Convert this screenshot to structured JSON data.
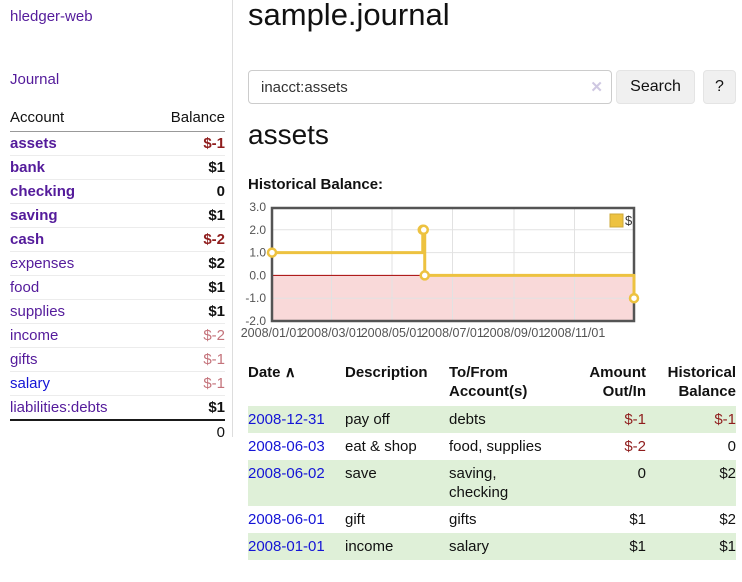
{
  "colors": {
    "link_purple": "#541b9b",
    "link_blue": "#1414d6",
    "negative_strong": "#8f1d1d",
    "negative_soft": "#c4737b",
    "row_stripe_green": "#dff0d8",
    "chart_gold": "#EDC240",
    "chart_negative_fill": "#f9d9d9",
    "chart_zero_line": "#a40000"
  },
  "sidebar": {
    "brand": "hledger-web",
    "nav": {
      "journal": "Journal"
    },
    "accounts_table": {
      "headers": {
        "account": "Account",
        "balance": "Balance"
      },
      "rows": [
        {
          "name": "assets",
          "indent": 1,
          "bold": true,
          "link_color": "purple",
          "balance": "$-1",
          "balance_style": "neg-strong"
        },
        {
          "name": "bank",
          "indent": 2,
          "bold": true,
          "link_color": "purple",
          "balance": "$1",
          "balance_style": "pos"
        },
        {
          "name": "checking",
          "indent": 3,
          "bold": true,
          "link_color": "purple",
          "balance": "0",
          "balance_style": "pos"
        },
        {
          "name": "saving",
          "indent": 3,
          "bold": true,
          "link_color": "purple",
          "balance": "$1",
          "balance_style": "pos"
        },
        {
          "name": "cash",
          "indent": 2,
          "bold": true,
          "link_color": "purple",
          "balance": "$-2",
          "balance_style": "neg-strong"
        },
        {
          "name": "expenses",
          "indent": 1,
          "bold": false,
          "link_color": "purple",
          "balance": "$2",
          "balance_style": "pos"
        },
        {
          "name": "food",
          "indent": 2,
          "bold": false,
          "link_color": "purple",
          "balance": "$1",
          "balance_style": "pos"
        },
        {
          "name": "supplies",
          "indent": 2,
          "bold": false,
          "link_color": "purple",
          "balance": "$1",
          "balance_style": "pos"
        },
        {
          "name": "income",
          "indent": 1,
          "bold": false,
          "link_color": "purple",
          "balance": "$-2",
          "balance_style": "neg-soft"
        },
        {
          "name": "gifts",
          "indent": 2,
          "bold": false,
          "link_color": "purple",
          "balance": "$-1",
          "balance_style": "neg-soft"
        },
        {
          "name": "salary",
          "indent": 2,
          "bold": false,
          "link_color": "blue",
          "balance": "$-1",
          "balance_style": "neg-soft"
        },
        {
          "name": "liabilities:debts",
          "indent": 1,
          "bold": false,
          "link_color": "purple",
          "balance": "$1",
          "balance_style": "pos"
        }
      ],
      "total": "0"
    }
  },
  "header": {
    "title": "sample.journal"
  },
  "search": {
    "value": "inacct:assets",
    "clear_icon": "✕",
    "button": "Search",
    "help_button": "?"
  },
  "account_page": {
    "heading": "assets",
    "chart_label": "Historical Balance:"
  },
  "chart_data": {
    "type": "line",
    "title": "Historical Balance",
    "xlim": [
      "2008-01-01",
      "2008-12-31"
    ],
    "ylim": [
      -2,
      3
    ],
    "grid": true,
    "legend_position": "top-right",
    "series": [
      {
        "name": "$",
        "color": "#EDC240",
        "steps": true,
        "points": [
          [
            "2008-01-01",
            1
          ],
          [
            "2008-06-01",
            2
          ],
          [
            "2008-06-02",
            2
          ],
          [
            "2008-06-03",
            0
          ],
          [
            "2008-12-31",
            -1
          ]
        ]
      }
    ],
    "yticks": [
      {
        "v": 3,
        "label": "3.0"
      },
      {
        "v": 2,
        "label": "2.0"
      },
      {
        "v": 1,
        "label": "1.0"
      },
      {
        "v": 0,
        "label": "0.0"
      },
      {
        "v": -1,
        "label": "-1.0"
      },
      {
        "v": -2,
        "label": "-2.0"
      }
    ],
    "xticks": [
      {
        "date": "2008-01-01",
        "label": "2008/01/01"
      },
      {
        "date": "2008-03-01",
        "label": "2008/03/01"
      },
      {
        "date": "2008-05-01",
        "label": "2008/05/01"
      },
      {
        "date": "2008-07-01",
        "label": "2008/07/01"
      },
      {
        "date": "2008-09-01",
        "label": "2008/09/01"
      },
      {
        "date": "2008-11-01",
        "label": "2008/11/01"
      }
    ],
    "negative_fill": "#f9d9d9",
    "zero_line_color": "#a40000"
  },
  "register": {
    "headers": {
      "date": "Date",
      "sort_icon": "∧",
      "description": "Description",
      "accounts": "To/From Account(s)",
      "amount": "Amount Out/In",
      "balance": "Historical Balance"
    },
    "rows": [
      {
        "date": "2008-12-31",
        "description": "pay off",
        "accounts": "debts",
        "amount": "$-1",
        "amount_neg": true,
        "balance": "$-1",
        "balance_neg": true
      },
      {
        "date": "2008-06-03",
        "description": "eat & shop",
        "accounts": "food, supplies",
        "amount": "$-2",
        "amount_neg": true,
        "balance": "0",
        "balance_neg": false
      },
      {
        "date": "2008-06-02",
        "description": "save",
        "accounts": "saving, checking",
        "amount": "0",
        "amount_neg": false,
        "balance": "$2",
        "balance_neg": false
      },
      {
        "date": "2008-06-01",
        "description": "gift",
        "accounts": "gifts",
        "amount": "$1",
        "amount_neg": false,
        "balance": "$2",
        "balance_neg": false
      },
      {
        "date": "2008-01-01",
        "description": "income",
        "accounts": "salary",
        "amount": "$1",
        "amount_neg": false,
        "balance": "$1",
        "balance_neg": false
      }
    ]
  }
}
